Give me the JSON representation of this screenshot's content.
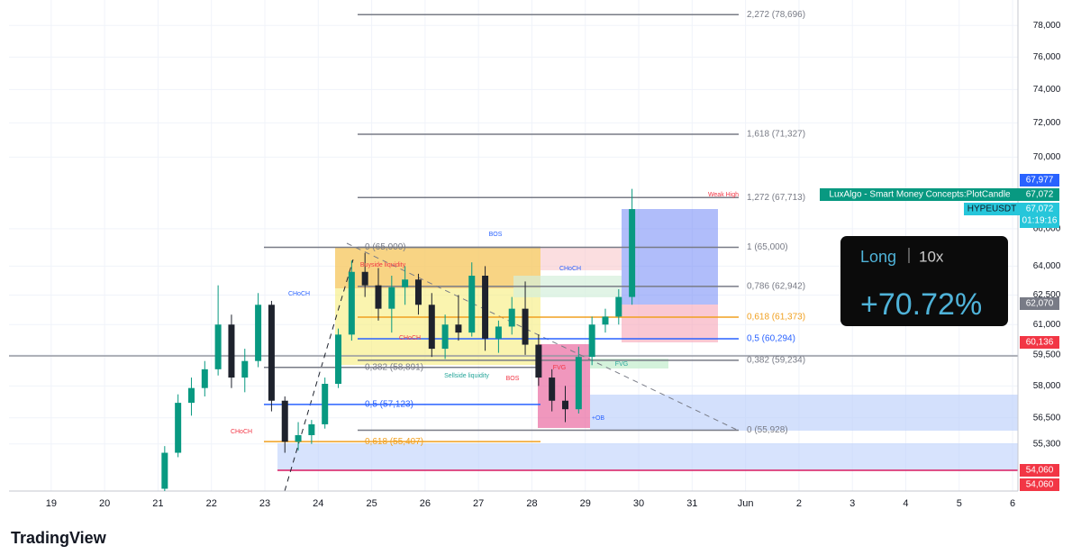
{
  "chart_data": {
    "type": "candlestick",
    "symbol": "HYPEUSDT",
    "indicator": "LuxAlgo - Smart Money Concepts:PlotCandle",
    "log_scale": true,
    "grid": true,
    "up_color": "#089981",
    "down_color": "#1e222d",
    "x": [
      21.125,
      21.375,
      21.625,
      21.875,
      22.125,
      22.375,
      22.625,
      22.875,
      23.125,
      23.375,
      23.625,
      23.875,
      24.125,
      24.375,
      24.625,
      24.875,
      25.125,
      25.375,
      25.625,
      25.875,
      26.125,
      26.375,
      26.625,
      26.875,
      27.125,
      27.375,
      27.625,
      27.875,
      28.125,
      28.375,
      28.625,
      28.875,
      29.125,
      29.375,
      29.625,
      29.875
    ],
    "open": [
      53300,
      54900,
      57200,
      57900,
      58800,
      61000,
      58400,
      59200,
      62000,
      57300,
      55400,
      55700,
      56200,
      58100,
      60500,
      63700,
      63000,
      61800,
      62900,
      63300,
      62000,
      59800,
      61000,
      60600,
      63500,
      60300,
      60900,
      61800,
      60000,
      58400,
      57300,
      56900,
      59400,
      61000,
      61400,
      62400
    ],
    "high": [
      55200,
      57600,
      58400,
      59200,
      63000,
      61500,
      59800,
      62600,
      62200,
      57500,
      56300,
      56400,
      58400,
      60800,
      64300,
      64700,
      63900,
      63500,
      64000,
      63600,
      62600,
      61500,
      62500,
      64200,
      64000,
      61200,
      62400,
      63200,
      60500,
      58800,
      58000,
      59900,
      61400,
      61800,
      62800,
      68200
    ],
    "low": [
      53200,
      54700,
      56600,
      57500,
      58500,
      57900,
      57700,
      58900,
      56800,
      54900,
      55000,
      55300,
      56000,
      57900,
      60200,
      62400,
      61200,
      60600,
      62000,
      61500,
      59400,
      59300,
      60200,
      60400,
      59700,
      59600,
      60500,
      59500,
      58000,
      56800,
      56300,
      56700,
      59000,
      60600,
      61000,
      62000
    ],
    "close": [
      54900,
      57200,
      57900,
      58800,
      61000,
      58400,
      59200,
      62000,
      57300,
      55400,
      55700,
      56200,
      58100,
      60500,
      63700,
      63000,
      61800,
      62900,
      63300,
      62000,
      59800,
      61000,
      60600,
      63500,
      60300,
      60900,
      61800,
      60000,
      58400,
      57300,
      56900,
      59400,
      61000,
      61400,
      62400,
      67072
    ],
    "xlim": [
      18.21,
      37.1
    ],
    "xticks": [
      19,
      20,
      21,
      22,
      23,
      24,
      25,
      26,
      27,
      28,
      29,
      30,
      31,
      {
        "value": 32,
        "label": "Jun"
      },
      {
        "value": 33,
        "label": "2"
      },
      {
        "value": 34,
        "label": "3"
      },
      {
        "value": 35,
        "label": "4"
      },
      {
        "value": 36,
        "label": "5"
      },
      {
        "value": 37,
        "label": "6"
      }
    ],
    "ylim": [
      53200,
      79650
    ],
    "yticks": [
      {
        "value": 78000,
        "label": "78,000"
      },
      {
        "value": 76000,
        "label": "76,000"
      },
      {
        "value": 74000,
        "label": "74,000"
      },
      {
        "value": 72000,
        "label": "72,000"
      },
      {
        "value": 70000,
        "label": "70,000"
      },
      {
        "value": 66000,
        "label": "66,000"
      },
      {
        "value": 64000,
        "label": "64,000"
      },
      {
        "value": 62500,
        "label": "62,500"
      },
      {
        "value": 61000,
        "label": "61,000"
      },
      {
        "value": 59500,
        "label": "59,500"
      },
      {
        "value": 58000,
        "label": "58,000"
      },
      {
        "value": 56500,
        "label": "56,500"
      },
      {
        "value": 55300,
        "label": "55,300"
      }
    ],
    "fibs": [
      {
        "levels": [
          {
            "label": "0 (65,000)",
            "value": 65000,
            "color": "#787b86"
          },
          {
            "label": "0,382 (58,891)",
            "value": 58891,
            "color": "#787b86"
          },
          {
            "label": "0,5 (57,123)",
            "value": 57123,
            "color": "#2962ff"
          },
          {
            "label": "0,618 (55,407)",
            "value": 55407,
            "color": "#f0a020"
          }
        ]
      },
      {
        "levels": [
          {
            "label": "2,272 (78,696)",
            "value": 78696,
            "color": "#787b86"
          },
          {
            "label": "1,618 (71,327)",
            "value": 71327,
            "color": "#787b86"
          },
          {
            "label": "1,272 (67,713)",
            "value": 67713,
            "color": "#787b86"
          },
          {
            "label": "1 (65,000)",
            "value": 65000,
            "color": "#787b86"
          },
          {
            "label": "0,786 (62,942)",
            "value": 62942,
            "color": "#787b86"
          },
          {
            "label": "0,618 (61,373)",
            "value": 61373,
            "color": "#f0a020"
          },
          {
            "label": "0,5 (60,294)",
            "value": 60294,
            "color": "#2962ff"
          },
          {
            "label": "0,382 (59,234)",
            "value": 59234,
            "color": "#787b86"
          },
          {
            "label": "0 (55,928)",
            "value": 55928,
            "color": "#787b86"
          }
        ]
      }
    ],
    "price_badges": [
      {
        "label": "67,977",
        "value": 67977,
        "color": "#2962ff"
      },
      {
        "label": "67,072",
        "value": 67072,
        "color": "#089981"
      },
      {
        "label": "67,072",
        "value": 67072,
        "color": "#26c6da"
      },
      {
        "label": "62,070",
        "value": 62070,
        "color": "#787b86"
      },
      {
        "label": "60,136",
        "value": 60136,
        "color": "#f23645"
      },
      {
        "label": "54,060",
        "value": 54060,
        "color": "#f23645"
      },
      {
        "label": "54,060",
        "value": 54060,
        "color": "#f23645"
      }
    ],
    "countdown": "01:19:16",
    "annotations": [
      "BOS",
      "CHoCH",
      "Buyside liquidity",
      "CHoCH",
      "CHoCH",
      "CHoCH",
      "Sellside liquidity",
      "BOS",
      "FVG",
      "FVG",
      "+OB",
      "Weak High"
    ]
  },
  "position_panel": {
    "side": "Long",
    "leverage": "10x",
    "pnl": "+70.72%"
  },
  "footer": {
    "brand": "TradingView"
  }
}
